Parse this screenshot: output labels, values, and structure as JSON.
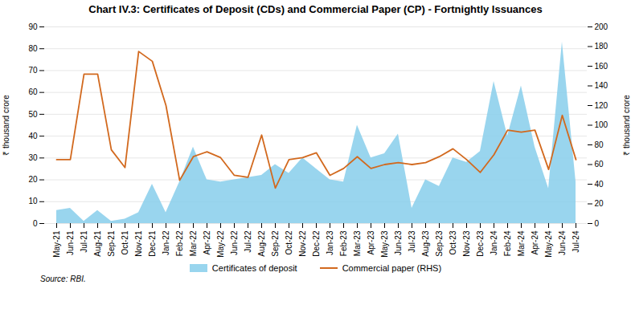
{
  "chart_data": {
    "type": "area",
    "title": "Chart IV.3: Certificates of Deposit (CDs) and Commercial Paper (CP) - Fortnightly Issuances",
    "ylabel": "₹ thousand crore",
    "y2label": "₹ thousand crore",
    "source": "Source: RBI.",
    "categories": [
      "May-21",
      "Jun-21",
      "Jul-21",
      "Aug-21",
      "Sep-21",
      "Oct-21",
      "Nov-21",
      "Dec-21",
      "Jan-22",
      "Feb-22",
      "Mar-22",
      "Apr-22",
      "May-22",
      "Jun-22",
      "Jul-22",
      "Aug-22",
      "Sep-22",
      "Oct-22",
      "Nov-22",
      "Dec-22",
      "Jan-23",
      "Feb-23",
      "Mar-23",
      "Apr-23",
      "May-23",
      "Jun-23",
      "Jul-23",
      "Aug-23",
      "Sep-23",
      "Oct-23",
      "Nov-23",
      "Dec-23",
      "Jan-24",
      "Feb-24",
      "Mar-24",
      "Apr-24",
      "May-24",
      "Jun-24",
      "Jul-24"
    ],
    "series": [
      {
        "name": "Certificates of deposit",
        "type": "area",
        "color": "#87CEEB",
        "values": [
          6,
          7,
          1,
          6,
          1,
          2,
          5,
          18,
          5,
          19,
          35,
          20,
          19,
          20,
          21,
          22,
          27,
          23,
          30,
          25,
          20,
          19,
          45,
          30,
          32,
          41,
          7,
          20,
          17,
          30,
          28,
          33,
          65,
          40,
          63,
          35,
          16,
          83,
          19
        ]
      },
      {
        "name": "Commercial paper (RHS)",
        "type": "line",
        "color": "#D2691E",
        "axis": "y2",
        "values": [
          65,
          65,
          152,
          152,
          75,
          57,
          175,
          165,
          120,
          44,
          68,
          73,
          67,
          49,
          47,
          90,
          36,
          65,
          67,
          72,
          49,
          56,
          68,
          56,
          60,
          62,
          60,
          62,
          68,
          76,
          65,
          52,
          70,
          95,
          93,
          95,
          55,
          110,
          65
        ]
      }
    ],
    "ylim": [
      0,
      90
    ],
    "yticks": [
      0,
      10,
      20,
      30,
      40,
      50,
      60,
      70,
      80,
      90
    ],
    "y2lim": [
      0,
      200
    ],
    "y2ticks": [
      0,
      20,
      40,
      60,
      80,
      100,
      120,
      140,
      160,
      180,
      200
    ],
    "grid": true,
    "legend": "bottom"
  }
}
